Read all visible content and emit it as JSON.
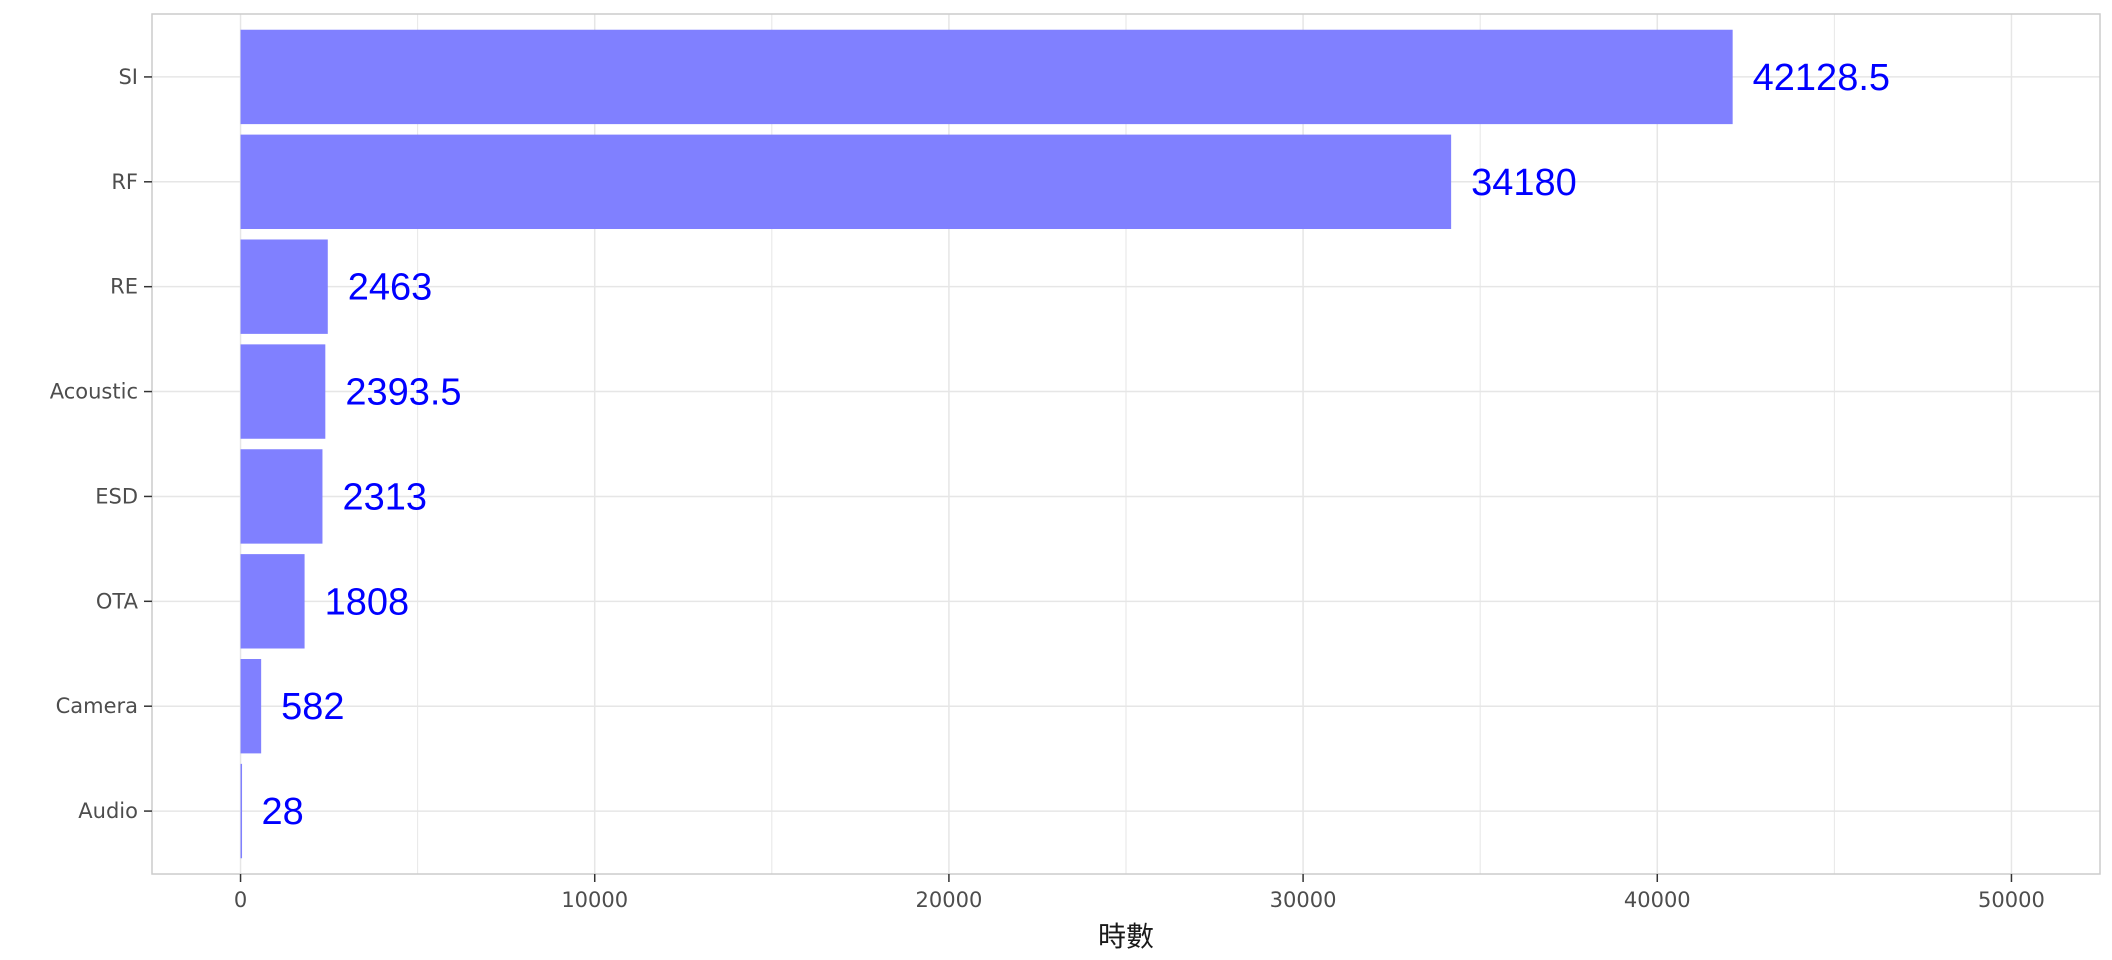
{
  "chart_data": {
    "type": "bar",
    "orientation": "horizontal",
    "categories": [
      "SI",
      "RF",
      "RE",
      "Acoustic",
      "ESD",
      "OTA",
      "Camera",
      "Audio"
    ],
    "values": [
      42128.5,
      34180,
      2463,
      2393.5,
      2313,
      1808,
      582,
      28
    ],
    "value_labels": [
      "42128.5",
      "34180",
      "2463",
      "2393.5",
      "2313",
      "1808",
      "582",
      "28"
    ],
    "xlabel": "時數",
    "ylabel": "",
    "xlim": [
      -2500,
      52500
    ],
    "xticks": [
      0,
      10000,
      20000,
      30000,
      40000,
      50000
    ],
    "xtick_labels": [
      "0",
      "10000",
      "20000",
      "30000",
      "40000",
      "50000"
    ],
    "grid": true,
    "legend": "none",
    "bar_color": "#8080ff",
    "label_color": "#0000ff",
    "grid_color": "#e6e6e6",
    "border_color": "#cccccc"
  }
}
